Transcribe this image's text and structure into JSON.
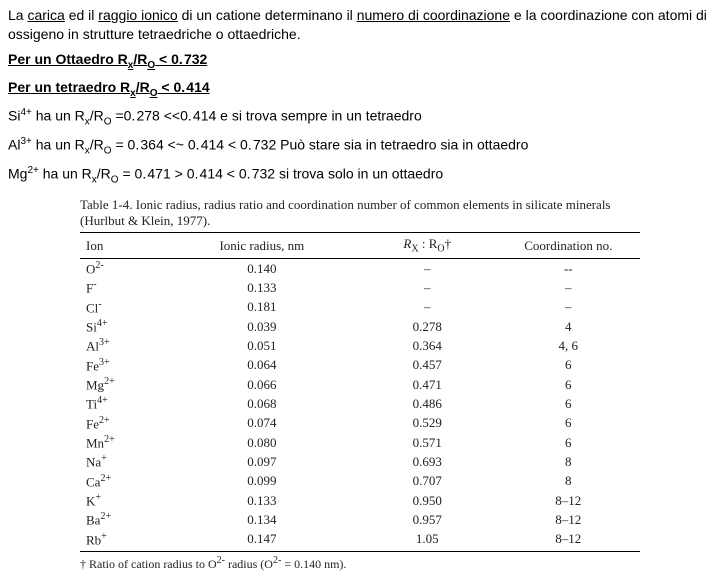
{
  "text": {
    "intro_1a": "La ",
    "intro_1b": "carica",
    "intro_1c": " ed il ",
    "intro_1d": "raggio ionico",
    "intro_1e": " di un catione determinano il ",
    "intro_1f": "numero di coordinazione",
    "intro_1g": " e la coordinazione con atomi di ossigeno in strutture tetraedriche o ottaedriche.",
    "oct_a": "Per un Ottaedro R",
    "oct_b": "/R",
    "oct_c": " < 0. 732",
    "tet_a": "Per un tetraedro R",
    "tet_b": "/R",
    "tet_c": " < 0. 414",
    "si_a": "Si",
    "si_sup": "4+",
    "si_b": " ha un R",
    "si_c": "/R",
    "si_d": " =0. 278 <<0. 414 e si trova sempre in un tetraedro",
    "al_a": "Al",
    "al_sup": "3+",
    "al_b": " ha un R",
    "al_c": "/R",
    "al_d": " = 0. 364 <~ 0. 414 < 0. 732 Può stare sia in tetraedro sia in ottaedro",
    "mg_a": "Mg",
    "mg_sup": "2+",
    "mg_b": " ha un R",
    "mg_c": "/R",
    "mg_d": "  = 0. 471 > 0. 414 < 0. 732 si trova solo in un ottaedro",
    "sub_x": "x",
    "sub_O": "O"
  },
  "table": {
    "caption": "Table 1-4. Ionic radius, radius ratio and coordination number of common elements in silicate minerals (Hurlbut & Klein, 1977).",
    "headers": {
      "ion": "Ion",
      "radius": "Ionic radius, nm",
      "ratio_a": "R",
      "ratio_sub_x": "X",
      "ratio_b": " : R",
      "ratio_sub_o": "O",
      "ratio_c": "†",
      "cn": "Coordination no."
    },
    "rows": [
      {
        "ion_a": "O",
        "ion_sup": "2-",
        "radius": "0.140",
        "ratio": "–",
        "cn": "--"
      },
      {
        "ion_a": "F",
        "ion_sup": "-",
        "radius": "0.133",
        "ratio": "–",
        "cn": "–"
      },
      {
        "ion_a": "Cl",
        "ion_sup": "-",
        "radius": "0.181",
        "ratio": "–",
        "cn": "–"
      },
      {
        "ion_a": "Si",
        "ion_sup": "4+",
        "radius": "0.039",
        "ratio": "0.278",
        "cn": "4"
      },
      {
        "ion_a": "Al",
        "ion_sup": "3+",
        "radius": "0.051",
        "ratio": "0.364",
        "cn": "4, 6"
      },
      {
        "ion_a": "Fe",
        "ion_sup": "3+",
        "radius": "0.064",
        "ratio": "0.457",
        "cn": "6"
      },
      {
        "ion_a": "Mg",
        "ion_sup": "2+",
        "radius": "0.066",
        "ratio": "0.471",
        "cn": "6"
      },
      {
        "ion_a": "Ti",
        "ion_sup": "4+",
        "radius": "0.068",
        "ratio": "0.486",
        "cn": "6"
      },
      {
        "ion_a": "Fe",
        "ion_sup": "2+",
        "radius": "0.074",
        "ratio": "0.529",
        "cn": "6"
      },
      {
        "ion_a": "Mn",
        "ion_sup": "2+",
        "radius": "0.080",
        "ratio": "0.571",
        "cn": "6"
      },
      {
        "ion_a": "Na",
        "ion_sup": "+",
        "radius": "0.097",
        "ratio": "0.693",
        "cn": "8"
      },
      {
        "ion_a": "Ca",
        "ion_sup": "2+",
        "radius": "0.099",
        "ratio": "0.707",
        "cn": "8"
      },
      {
        "ion_a": "K",
        "ion_sup": "+",
        "radius": "0.133",
        "ratio": "0.950",
        "cn": "8–12"
      },
      {
        "ion_a": "Ba",
        "ion_sup": "2+",
        "radius": "0.134",
        "ratio": "0.957",
        "cn": "8–12"
      },
      {
        "ion_a": "Rb",
        "ion_sup": "+",
        "radius": "0.147",
        "ratio": "1.05",
        "cn": "8–12"
      }
    ],
    "footnote_a": "† Ratio of cation radius to O",
    "footnote_sup": "2-",
    "footnote_b": " radius (O",
    "footnote_sup2": "2-",
    "footnote_c": " = 0.140 nm)."
  }
}
